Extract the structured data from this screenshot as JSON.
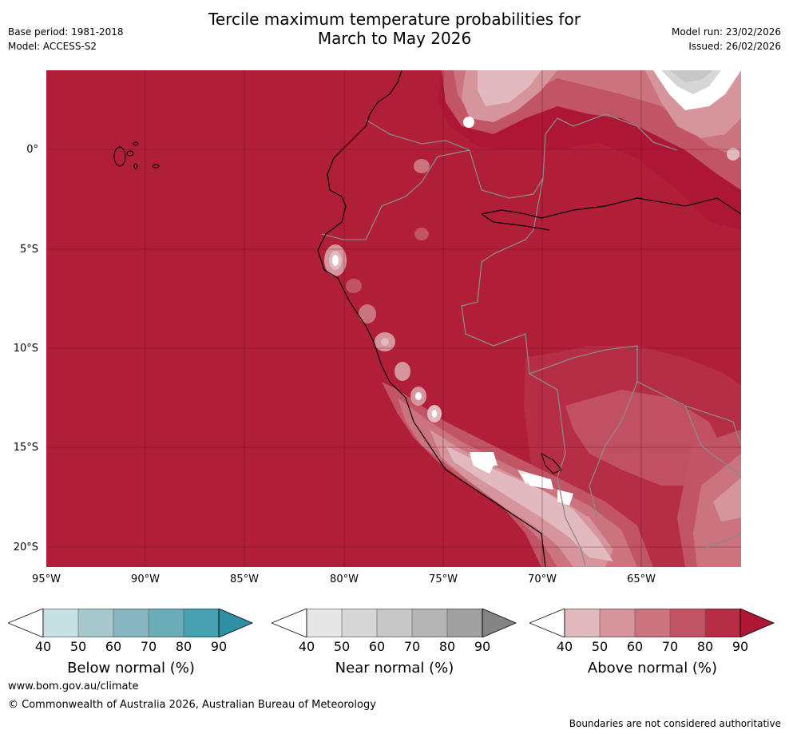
{
  "title": {
    "line1": "Tercile maximum temperature probabilities for",
    "line2": "March to May 2026"
  },
  "meta_left": {
    "base_period": "Base period: 1981-2018",
    "model": "Model: ACCESS-S2"
  },
  "meta_right": {
    "model_run": "Model run: 23/02/2026",
    "issued": "Issued: 26/02/2026"
  },
  "map": {
    "lat_labels": [
      "0°",
      "5°S",
      "10°S",
      "15°S",
      "20°S"
    ],
    "lon_labels": [
      "95°W",
      "90°W",
      "85°W",
      "80°W",
      "75°W",
      "70°W",
      "65°W"
    ],
    "background_color": "#b01e37"
  },
  "colorbars": [
    {
      "title": "Below normal (%)",
      "ticks": [
        "40",
        "50",
        "60",
        "70",
        "80",
        "90"
      ],
      "colors": [
        "#ffffff",
        "#c7e0e4",
        "#a6c8cd",
        "#88b7c1",
        "#6aacb7",
        "#47a1b1",
        "#2e8fa5"
      ]
    },
    {
      "title": "Near normal (%)",
      "ticks": [
        "40",
        "50",
        "60",
        "70",
        "80",
        "90"
      ],
      "colors": [
        "#ffffff",
        "#e6e6e6",
        "#d6d6d6",
        "#c7c7c7",
        "#b5b5b5",
        "#a0a0a0",
        "#848484"
      ]
    },
    {
      "title": "Above normal (%)",
      "ticks": [
        "40",
        "50",
        "60",
        "70",
        "80",
        "90"
      ],
      "colors": [
        "#ffffff",
        "#e1b9bf",
        "#d6959d",
        "#cb7480",
        "#c25565",
        "#b62e46",
        "#ad1735"
      ]
    }
  ],
  "footer": {
    "website": "www.bom.gov.au/climate",
    "copyright": "© Commonwealth of Australia 2026, Australian Bureau of Meteorology",
    "disclaimer": "Boundaries are not considered authoritative"
  }
}
